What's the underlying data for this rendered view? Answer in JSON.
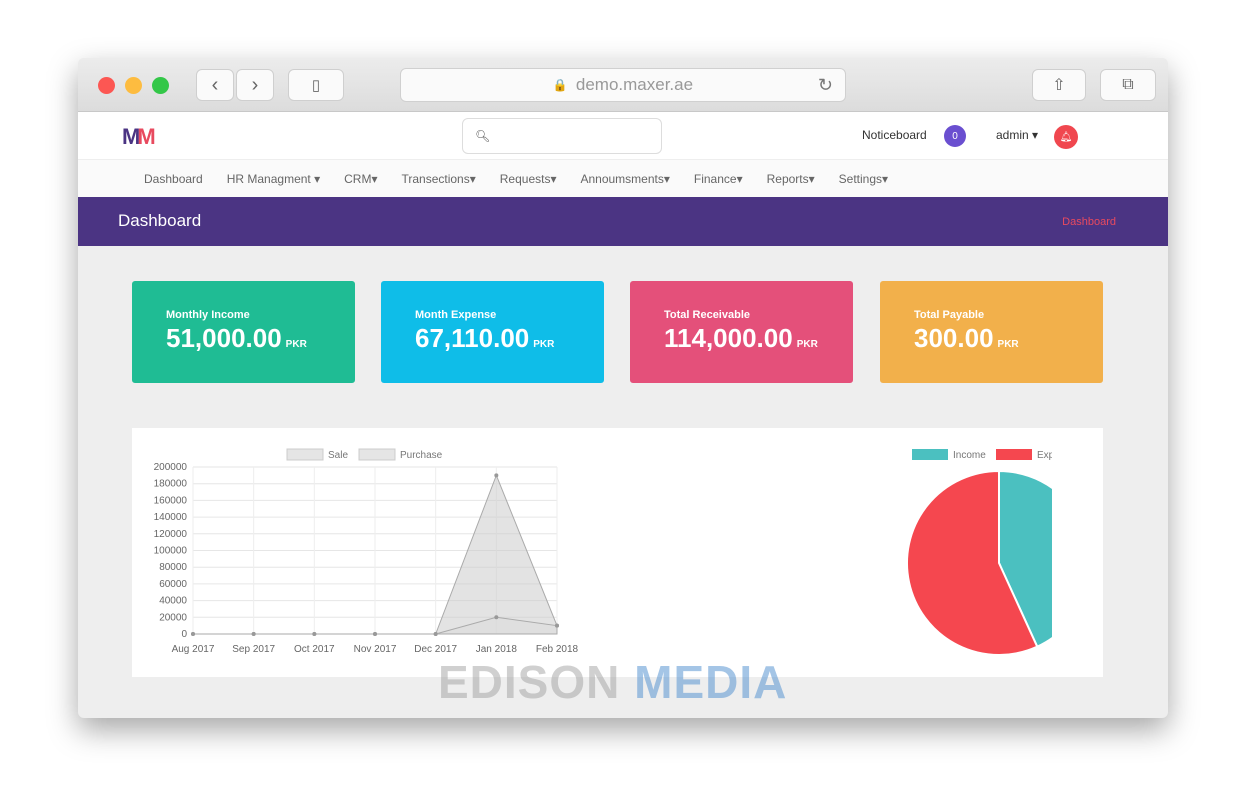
{
  "browser": {
    "url": "demo.maxer.ae",
    "icons": [
      "back-icon",
      "forward-icon",
      "sidebar-icon",
      "lock-icon",
      "reload-icon",
      "share-icon",
      "tabs-icon"
    ]
  },
  "header": {
    "logo": "M",
    "search_placeholder": "",
    "noticeboard_label": "Noticeboard",
    "noticeboard_count": "0",
    "user": "admin ▾"
  },
  "nav": [
    "Dashboard",
    "HR Managment ▾",
    "CRM▾",
    "Transections▾",
    "Requests▾",
    "Annoumsments▾",
    "Finance▾",
    "Reports▾",
    "Settings▾"
  ],
  "page": {
    "title": "Dashboard",
    "breadcrumb": "Dashboard"
  },
  "cards": [
    {
      "label": "Monthly Income",
      "value": "51,000.00",
      "unit": "PKR",
      "color": "#1fbc94"
    },
    {
      "label": "Month Expense",
      "value": "67,110.00",
      "unit": "PKR",
      "color": "#0fbde8"
    },
    {
      "label": "Total Receivable",
      "value": "114,000.00",
      "unit": "PKR",
      "color": "#e4507a"
    },
    {
      "label": "Total Payable",
      "value": "300.00",
      "unit": "PKR",
      "color": "#f2b04b"
    }
  ],
  "watermark": "EDISON MEDIA",
  "chart_data": [
    {
      "type": "line",
      "categories": [
        "Aug 2017",
        "Sep 2017",
        "Oct 2017",
        "Nov 2017",
        "Dec 2017",
        "Jan 2018",
        "Feb 2018"
      ],
      "series": [
        {
          "name": "Sale",
          "values": [
            0,
            0,
            0,
            0,
            0,
            190000,
            10000
          ]
        },
        {
          "name": "Purchase",
          "values": [
            0,
            0,
            0,
            0,
            0,
            20000,
            10000
          ]
        }
      ],
      "ylim": [
        0,
        200000
      ],
      "yticks": [
        0,
        20000,
        40000,
        60000,
        80000,
        100000,
        120000,
        140000,
        160000,
        180000,
        200000
      ],
      "grid": true,
      "legend": "top"
    },
    {
      "type": "pie",
      "labels": [
        "Income",
        "Expense"
      ],
      "values": [
        51000,
        67110
      ],
      "colors": [
        "#4bc0c0",
        "#f5474f"
      ],
      "legend": "top"
    }
  ]
}
